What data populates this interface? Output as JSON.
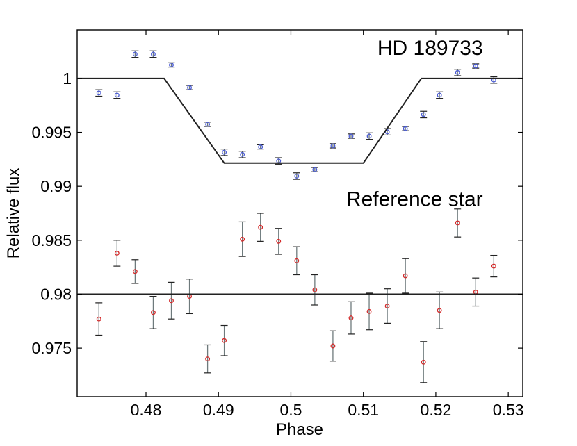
{
  "chart_data": {
    "type": "scatter",
    "title": "",
    "xlabel": "Phase",
    "ylabel": "Relative flux",
    "xlim": [
      0.4705,
      0.532
    ],
    "ylim": [
      0.9705,
      1.0045
    ],
    "xticks": [
      0.48,
      0.49,
      0.5,
      0.51,
      0.52,
      0.53
    ],
    "xtick_labels": [
      "0.48",
      "0.49",
      "0.5",
      "0.51",
      "0.52",
      "0.53"
    ],
    "yticks": [
      0.975,
      0.98,
      0.985,
      0.99,
      0.995,
      1.0
    ],
    "ytick_labels": [
      "0.975",
      "0.98",
      "0.985",
      "0.99",
      "0.995",
      "1"
    ],
    "grid": false,
    "annotations": [
      {
        "text": "HD 189733",
        "x": 0.5265,
        "y": 1.0029
      },
      {
        "text": "Reference star",
        "x": 0.5265,
        "y": 0.9889
      }
    ],
    "series": [
      {
        "name": "HD 189733",
        "kind": "points",
        "color": "#4a5bd4",
        "x": [
          0.4735,
          0.476,
          0.4785,
          0.481,
          0.4835,
          0.486,
          0.4885,
          0.4908,
          0.4933,
          0.4958,
          0.4983,
          0.5008,
          0.5033,
          0.5058,
          0.5083,
          0.5108,
          0.5133,
          0.5158,
          0.5183,
          0.5205,
          0.523,
          0.5255,
          0.528
        ],
        "y": [
          0.99865,
          0.99845,
          1.00225,
          1.00225,
          1.00125,
          0.99915,
          0.99575,
          0.99315,
          0.99295,
          0.99365,
          0.99235,
          0.99095,
          0.99155,
          0.99375,
          0.99465,
          0.99465,
          0.99505,
          0.99535,
          0.99665,
          0.99845,
          1.00055,
          1.00115,
          0.99985
        ],
        "yerr": [
          0.0003,
          0.0003,
          0.0003,
          0.0003,
          0.0002,
          0.0002,
          0.0002,
          0.0003,
          0.0003,
          0.0002,
          0.0003,
          0.0003,
          0.0002,
          0.0002,
          0.0002,
          0.0003,
          0.0003,
          0.0002,
          0.0003,
          0.0003,
          0.0003,
          0.0002,
          0.0003
        ]
      },
      {
        "name": "HD 189733 model",
        "kind": "line",
        "color": "#222222",
        "x": [
          0.4705,
          0.4825,
          0.4908,
          0.51,
          0.518,
          0.532
        ],
        "y": [
          1.0,
          1.0,
          0.99215,
          0.99215,
          1.0,
          1.0
        ]
      },
      {
        "name": "Reference star",
        "kind": "points",
        "color": "#d42a2a",
        "x": [
          0.4735,
          0.476,
          0.4785,
          0.481,
          0.4835,
          0.486,
          0.4885,
          0.4908,
          0.4933,
          0.4958,
          0.4983,
          0.5008,
          0.5033,
          0.5058,
          0.5083,
          0.5108,
          0.5133,
          0.5158,
          0.5183,
          0.5205,
          0.523,
          0.5255,
          0.528
        ],
        "y": [
          0.9777,
          0.9838,
          0.9821,
          0.9783,
          0.9794,
          0.9798,
          0.974,
          0.9757,
          0.9851,
          0.9862,
          0.9849,
          0.9831,
          0.9804,
          0.9752,
          0.9778,
          0.9784,
          0.9789,
          0.9817,
          0.9737,
          0.9785,
          0.9866,
          0.9802,
          0.9826
        ],
        "yerr": [
          0.0015,
          0.0012,
          0.0011,
          0.0015,
          0.0017,
          0.0016,
          0.0013,
          0.0014,
          0.0016,
          0.0013,
          0.0012,
          0.0013,
          0.0014,
          0.0014,
          0.0015,
          0.0017,
          0.0016,
          0.0016,
          0.0019,
          0.0017,
          0.0013,
          0.0013,
          0.001
        ]
      },
      {
        "name": "Reference star model",
        "kind": "line",
        "color": "#222222",
        "x": [
          0.4705,
          0.532
        ],
        "y": [
          0.98,
          0.98
        ]
      }
    ]
  }
}
